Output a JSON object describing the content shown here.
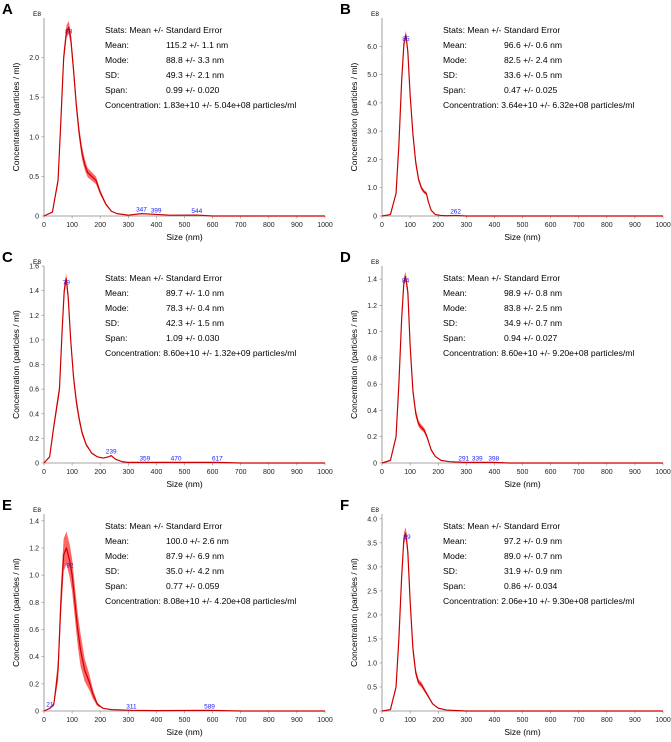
{
  "figure": {
    "stats_heading": "Stats: Mean +/- Standard Error",
    "labels": {
      "mean": "Mean:",
      "mode": "Mode:",
      "sd": "SD:",
      "span": "Span:",
      "conc": "Concentration:"
    }
  },
  "colors": {
    "curve": "#cc0000",
    "band": "#ff3333",
    "peak_label": "#1a1aff",
    "axis": "#888888"
  },
  "chart_data": [
    {
      "panel": "A",
      "type": "line",
      "exponent": "E8",
      "xlabel": "Size (nm)",
      "ylabel": "Concentration (particles / ml)",
      "xlim": [
        0,
        1000
      ],
      "ylim": [
        0,
        2.5
      ],
      "x_ticks": [
        0,
        100,
        200,
        300,
        400,
        500,
        600,
        700,
        800,
        900,
        1000
      ],
      "x_tick_labels": [
        "0",
        "100",
        "200",
        "300",
        "400",
        "500",
        "600",
        "700",
        "800",
        "900",
        "1000"
      ],
      "y_ticks": [
        0,
        0.5,
        1.0,
        1.5,
        2.0
      ],
      "y_tick_labels": [
        "0",
        "0.5",
        "1.0",
        "1.5",
        "2.0"
      ],
      "series": [
        {
          "name": "Concentration",
          "x": [
            0,
            30,
            50,
            60,
            70,
            80,
            88,
            95,
            105,
            115,
            125,
            135,
            145,
            155,
            170,
            185,
            200,
            220,
            240,
            260,
            300,
            347,
            400,
            450,
            544,
            600,
            700,
            800,
            900,
            1000
          ],
          "y": [
            0,
            0.05,
            0.45,
            1.2,
            2.0,
            2.33,
            2.38,
            2.25,
            1.85,
            1.4,
            1.05,
            0.8,
            0.65,
            0.55,
            0.5,
            0.45,
            0.3,
            0.15,
            0.06,
            0.03,
            0.01,
            0.03,
            0.02,
            0.01,
            0.012,
            0,
            0,
            0,
            0,
            0
          ]
        }
      ],
      "band_halfwidth": 0.08,
      "peak_labels": [
        {
          "x": 88,
          "y": 2.38,
          "text": "88"
        },
        {
          "x": 347,
          "y": 0.03,
          "text": "347"
        },
        {
          "x": 399,
          "y": 0.02,
          "text": "399"
        },
        {
          "x": 544,
          "y": 0.012,
          "text": "544"
        }
      ],
      "stats": {
        "mean": "115.2 +/- 1.1 nm",
        "mode": "88.8 +/- 3.3 nm",
        "sd": "49.3 +/- 2.1 nm",
        "span": "0.99 +/- 0.020",
        "conc": "1.83e+10 +/- 5.04e+08 particles/ml"
      }
    },
    {
      "panel": "B",
      "type": "line",
      "exponent": "E8",
      "xlabel": "Size (nm)",
      "ylabel": "Concentration (particles / ml)",
      "xlim": [
        0,
        1000
      ],
      "ylim": [
        0,
        7.0
      ],
      "x_ticks": [
        0,
        100,
        200,
        300,
        400,
        500,
        600,
        700,
        800,
        900,
        1000
      ],
      "x_tick_labels": [
        "0",
        "100",
        "200",
        "300",
        "400",
        "500",
        "600",
        "700",
        "800",
        "900",
        "1000"
      ],
      "y_ticks": [
        0,
        1.0,
        2.0,
        3.0,
        4.0,
        5.0,
        6.0
      ],
      "y_tick_labels": [
        "0",
        "1.0",
        "2.0",
        "3.0",
        "4.0",
        "5.0",
        "6.0"
      ],
      "series": [
        {
          "name": "Concentration",
          "x": [
            0,
            30,
            50,
            60,
            70,
            78,
            85,
            92,
            100,
            110,
            120,
            130,
            140,
            150,
            158,
            165,
            175,
            190,
            210,
            230,
            262,
            300,
            400,
            500,
            600,
            700,
            800,
            900,
            1000
          ],
          "y": [
            0,
            0.05,
            0.8,
            2.5,
            4.8,
            6.1,
            6.4,
            5.8,
            4.3,
            2.9,
            1.9,
            1.3,
            1.0,
            0.85,
            0.8,
            0.5,
            0.2,
            0.05,
            0.02,
            0.01,
            0.02,
            0,
            0,
            0,
            0,
            0,
            0,
            0,
            0
          ]
        }
      ],
      "band_halfwidth": 0.15,
      "peak_labels": [
        {
          "x": 85,
          "y": 6.4,
          "text": "85"
        },
        {
          "x": 262,
          "y": 0.02,
          "text": "262"
        }
      ],
      "stats": {
        "mean": "96.6 +/- 0.6 nm",
        "mode": "82.5 +/- 2.4 nm",
        "sd": "33.6 +/- 0.5 nm",
        "span": "0.47 +/- 0.025",
        "conc": "3.64e+10 +/- 6.32e+08 particles/ml"
      }
    },
    {
      "panel": "C",
      "type": "line",
      "exponent": "E8",
      "xlabel": "Size (nm)",
      "ylabel": "Concentration (particles / ml)",
      "xlim": [
        0,
        1000
      ],
      "ylim": [
        0,
        1.6
      ],
      "x_ticks": [
        0,
        100,
        200,
        300,
        400,
        500,
        600,
        700,
        800,
        900,
        1000
      ],
      "x_tick_labels": [
        "0",
        "100",
        "200",
        "300",
        "400",
        "500",
        "600",
        "700",
        "800",
        "900",
        "1000"
      ],
      "y_ticks": [
        0,
        0.2,
        0.4,
        0.6,
        0.8,
        1.0,
        1.2,
        1.4,
        1.6
      ],
      "y_tick_labels": [
        "0",
        "0.2",
        "0.4",
        "0.6",
        "0.8",
        "1.0",
        "1.2",
        "1.4",
        "1.6"
      ],
      "series": [
        {
          "name": "Concentration",
          "x": [
            0,
            20,
            35,
            45,
            55,
            65,
            72,
            79,
            86,
            95,
            105,
            115,
            125,
            135,
            150,
            170,
            190,
            210,
            230,
            239,
            255,
            280,
            300,
            359,
            470,
            617,
            700,
            800,
            900,
            1000
          ],
          "y": [
            0,
            0.05,
            0.3,
            0.45,
            0.6,
            1.1,
            1.4,
            1.5,
            1.35,
            1.0,
            0.7,
            0.5,
            0.36,
            0.25,
            0.15,
            0.08,
            0.05,
            0.04,
            0.05,
            0.06,
            0.03,
            0.01,
            0.005,
            0.005,
            0.005,
            0.005,
            0,
            0,
            0,
            0
          ]
        }
      ],
      "band_halfwidth": 0.04,
      "peak_labels": [
        {
          "x": 79,
          "y": 1.5,
          "text": "79"
        },
        {
          "x": 239,
          "y": 0.06,
          "text": "239"
        },
        {
          "x": 359,
          "y": 0.005,
          "text": "359"
        },
        {
          "x": 470,
          "y": 0.005,
          "text": "470"
        },
        {
          "x": 617,
          "y": 0.005,
          "text": "617"
        }
      ],
      "stats": {
        "mean": "89.7 +/- 1.0 nm",
        "mode": "78.3 +/- 0.4 nm",
        "sd": "42.3 +/- 1.5 nm",
        "span": "1.09 +/- 0.030",
        "conc": "8.60e+10 +/- 1.32e+09 particles/ml"
      }
    },
    {
      "panel": "D",
      "type": "line",
      "exponent": "E8",
      "xlabel": "Size (nm)",
      "ylabel": "Concentration (particles / ml)",
      "xlim": [
        0,
        1000
      ],
      "ylim": [
        0,
        1.5
      ],
      "x_ticks": [
        0,
        100,
        200,
        300,
        400,
        500,
        600,
        700,
        800,
        900,
        1000
      ],
      "x_tick_labels": [
        "0",
        "100",
        "200",
        "300",
        "400",
        "500",
        "600",
        "700",
        "800",
        "900",
        "1000"
      ],
      "y_ticks": [
        0,
        0.2,
        0.4,
        0.6,
        0.8,
        1.0,
        1.2,
        1.4
      ],
      "y_tick_labels": [
        "0",
        "0.2",
        "0.4",
        "0.6",
        "0.8",
        "1.0",
        "1.2",
        "1.4"
      ],
      "series": [
        {
          "name": "Concentration",
          "x": [
            0,
            30,
            50,
            60,
            70,
            78,
            84,
            92,
            100,
            110,
            120,
            130,
            140,
            150,
            160,
            175,
            190,
            210,
            240,
            291,
            339,
            398,
            450,
            600,
            700,
            800,
            900,
            1000
          ],
          "y": [
            0,
            0.02,
            0.2,
            0.6,
            1.1,
            1.38,
            1.42,
            1.3,
            0.9,
            0.55,
            0.38,
            0.3,
            0.27,
            0.25,
            0.2,
            0.1,
            0.05,
            0.02,
            0.01,
            0.005,
            0.005,
            0.005,
            0,
            0,
            0,
            0,
            0,
            0
          ]
        }
      ],
      "band_halfwidth": 0.035,
      "peak_labels": [
        {
          "x": 84,
          "y": 1.42,
          "text": "84"
        },
        {
          "x": 291,
          "y": 0.005,
          "text": "291"
        },
        {
          "x": 339,
          "y": 0.005,
          "text": "339"
        },
        {
          "x": 398,
          "y": 0.005,
          "text": "398"
        }
      ],
      "stats": {
        "mean": "98.9 +/- 0.8 nm",
        "mode": "83.8 +/- 2.5 nm",
        "sd": "34.9 +/- 0.7 nm",
        "span": "0.94 +/- 0.027",
        "conc": "8.60e+10 +/- 9.20e+08 particles/ml"
      }
    },
    {
      "panel": "E",
      "type": "line",
      "exponent": "E8",
      "xlabel": "Size (nm)",
      "ylabel": "Concentration (particles / ml)",
      "xlim": [
        0,
        1000
      ],
      "ylim": [
        0,
        1.45
      ],
      "x_ticks": [
        0,
        100,
        200,
        300,
        400,
        500,
        600,
        700,
        800,
        900,
        1000
      ],
      "x_tick_labels": [
        "0",
        "100",
        "200",
        "300",
        "400",
        "500",
        "600",
        "700",
        "800",
        "900",
        "1000"
      ],
      "y_ticks": [
        0,
        0.2,
        0.4,
        0.6,
        0.8,
        1.0,
        1.2,
        1.4
      ],
      "y_tick_labels": [
        "0",
        "0.2",
        "0.4",
        "0.6",
        "0.8",
        "1.0",
        "1.2",
        "1.4"
      ],
      "series": [
        {
          "name": "Concentration",
          "x": [
            0,
            21,
            35,
            50,
            60,
            70,
            80,
            92,
            100,
            110,
            120,
            130,
            145,
            160,
            175,
            190,
            210,
            240,
            311,
            400,
            589,
            700,
            800,
            900,
            1000
          ],
          "y": [
            0,
            0.02,
            0.05,
            0.3,
            0.8,
            1.15,
            1.2,
            1.1,
            1.0,
            0.8,
            0.6,
            0.45,
            0.3,
            0.22,
            0.12,
            0.05,
            0.02,
            0.01,
            0.005,
            0.003,
            0.005,
            0,
            0,
            0,
            0
          ]
        }
      ],
      "band_halfwidth": 0.12,
      "peak_labels": [
        {
          "x": 21,
          "y": 0.02,
          "text": "21"
        },
        {
          "x": 92,
          "y": 1.1,
          "text": "92"
        },
        {
          "x": 311,
          "y": 0.005,
          "text": "311"
        },
        {
          "x": 589,
          "y": 0.005,
          "text": "589"
        }
      ],
      "stats": {
        "mean": "100.0 +/- 2.6 nm",
        "mode": "87.9 +/- 6.9 nm",
        "sd": "35.0 +/- 4.2 nm",
        "span": "0.77 +/- 0.059",
        "conc": "8.08e+10 +/- 4.20e+08 particles/ml"
      }
    },
    {
      "panel": "F",
      "type": "line",
      "exponent": "E8",
      "xlabel": "Size (nm)",
      "ylabel": "Concentration (particles / ml)",
      "xlim": [
        0,
        1000
      ],
      "ylim": [
        0,
        4.1
      ],
      "x_ticks": [
        0,
        100,
        200,
        300,
        400,
        500,
        600,
        700,
        800,
        900,
        1000
      ],
      "x_tick_labels": [
        "0",
        "100",
        "200",
        "300",
        "400",
        "500",
        "600",
        "700",
        "800",
        "900",
        "1000"
      ],
      "y_ticks": [
        0,
        0.5,
        1.0,
        1.5,
        2.0,
        2.5,
        3.0,
        3.5,
        4.0
      ],
      "y_tick_labels": [
        "0",
        "0.5",
        "1.0",
        "1.5",
        "2.0",
        "2.5",
        "3.0",
        "3.5",
        "4.0"
      ],
      "series": [
        {
          "name": "Concentration",
          "x": [
            0,
            30,
            50,
            60,
            70,
            78,
            85,
            92,
            100,
            110,
            120,
            130,
            140,
            150,
            165,
            180,
            200,
            230,
            260,
            300,
            400,
            500,
            600,
            700,
            800,
            900,
            1000
          ],
          "y": [
            0,
            0.03,
            0.5,
            1.5,
            2.8,
            3.6,
            3.7,
            3.3,
            2.3,
            1.3,
            0.8,
            0.6,
            0.55,
            0.45,
            0.3,
            0.15,
            0.06,
            0.02,
            0.01,
            0,
            0,
            0,
            0,
            0,
            0,
            0,
            0
          ]
        }
      ],
      "band_halfwidth": 0.12,
      "peak_labels": [
        {
          "x": 89,
          "y": 3.7,
          "text": "89"
        }
      ],
      "stats": {
        "mean": "97.2 +/- 0.9 nm",
        "mode": "89.0 +/- 0.7 nm",
        "sd": "31.9 +/- 0.9 nm",
        "span": "0.86 +/- 0.034",
        "conc": "2.06e+10 +/- 9.30e+08 particles/ml"
      }
    }
  ]
}
